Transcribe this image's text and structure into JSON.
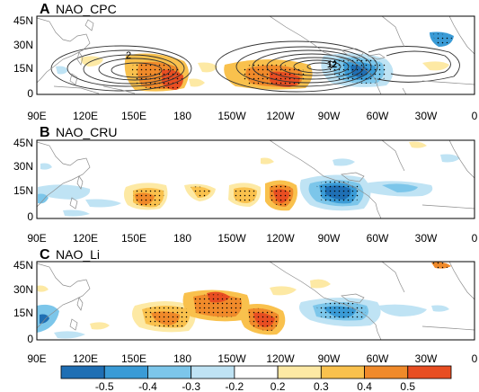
{
  "panels": [
    {
      "letter": "A",
      "title": "NAO_CPC"
    },
    {
      "letter": "B",
      "title": "NAO_CRU"
    },
    {
      "letter": "C",
      "title": "NAO_Li"
    }
  ],
  "lon_ticks": [
    "90E",
    "120E",
    "150E",
    "180",
    "150W",
    "120W",
    "90W",
    "60W",
    "30W",
    "0"
  ],
  "lat_ticks": [
    "45N",
    "30N",
    "15N",
    "0"
  ],
  "contour_labels": [
    "2",
    "12"
  ],
  "colorbar": {
    "tick_labels": [
      "-0.5",
      "-0.4",
      "-0.3",
      "-0.2",
      "0.2",
      "0.3",
      "0.4",
      "0.5"
    ],
    "colors": [
      "#1f6fb4",
      "#3a9bd6",
      "#7cc6ea",
      "#bfe3f4",
      "#ffffff",
      "#fde9a4",
      "#f9c14d",
      "#f08a2a",
      "#e84e22"
    ]
  }
}
